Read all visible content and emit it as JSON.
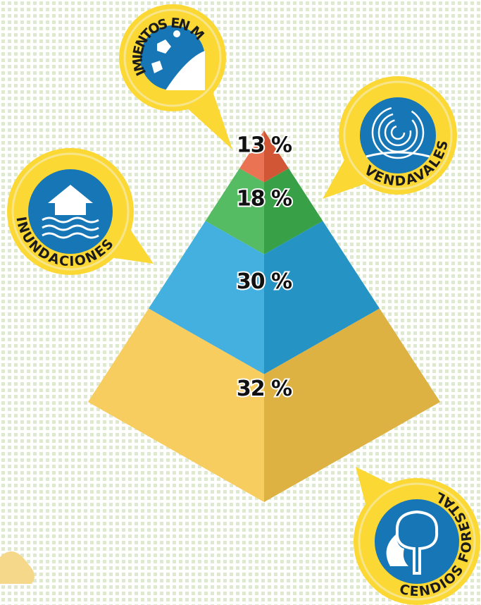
{
  "chart_data": {
    "type": "pyramid",
    "categories": [
      "MOVIMIENTOS EN MASA",
      "VENDAVALES",
      "INUNDACIONES",
      "INCENDIOS FORESTALES"
    ],
    "values": [
      13,
      18,
      30,
      32
    ],
    "value_labels": [
      "13 %",
      "18 %",
      "30 %",
      "32 %"
    ],
    "colors": [
      "#e8603c",
      "#3fb34f",
      "#2aa5dc",
      "#f6c64a"
    ]
  }
}
